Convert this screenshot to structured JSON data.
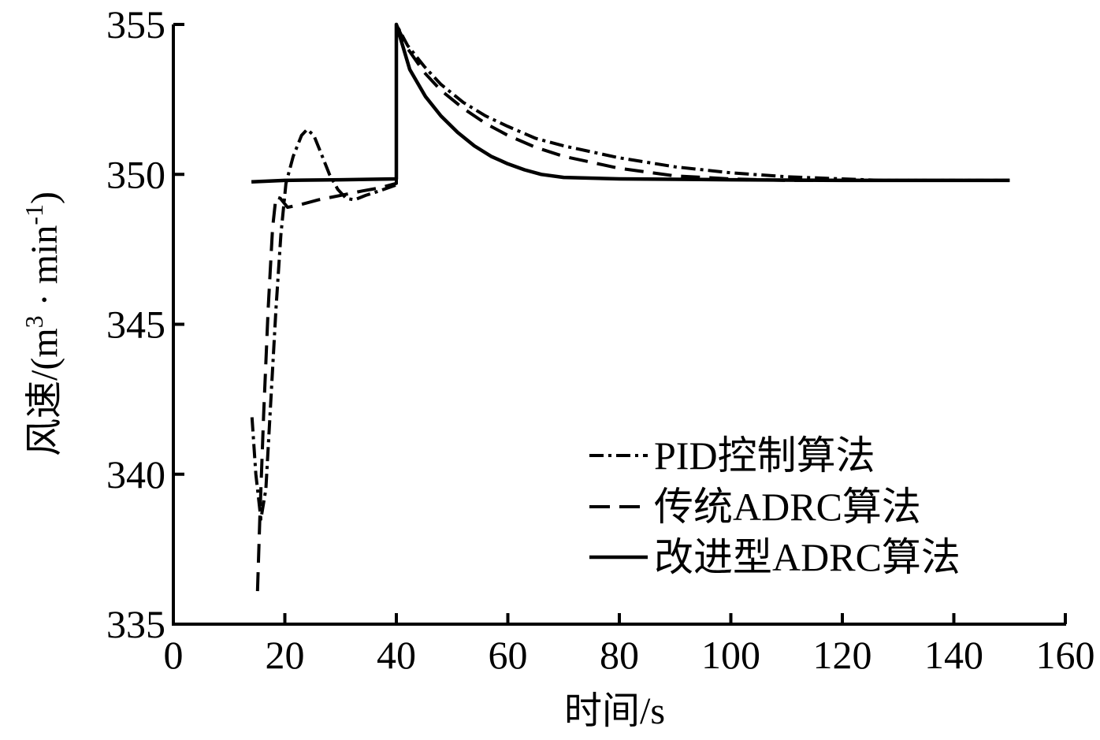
{
  "chart_data": {
    "type": "line",
    "title": "",
    "xlabel": "时间/s",
    "ylabel": "风速/(m³·min⁻¹)",
    "ylabel_parts": {
      "main": "风速/(m",
      "sup1": "3",
      "mid": " · min",
      "sup2": "-1",
      "end": ")"
    },
    "xlim": [
      0,
      160
    ],
    "ylim": [
      335,
      355
    ],
    "xticks": [
      0,
      20,
      40,
      60,
      80,
      100,
      120,
      140,
      160
    ],
    "yticks": [
      335,
      340,
      345,
      350,
      355
    ],
    "grid": false,
    "legend_position": "lower right",
    "series": [
      {
        "name": "PID控制算法",
        "style": "dashdot",
        "points": [
          [
            14.1,
            341.9
          ],
          [
            14.8,
            340.0
          ],
          [
            15.7,
            338.5
          ],
          [
            16.6,
            339.5
          ],
          [
            17.5,
            342.5
          ],
          [
            18.4,
            345.5
          ],
          [
            19.3,
            348.0
          ],
          [
            20.2,
            349.7
          ],
          [
            21.5,
            350.6
          ],
          [
            23.0,
            351.3
          ],
          [
            24.0,
            351.5
          ],
          [
            25.2,
            351.3
          ],
          [
            26.5,
            350.7
          ],
          [
            28.0,
            350.0
          ],
          [
            29.5,
            349.5
          ],
          [
            31.0,
            349.2
          ],
          [
            32.5,
            349.15
          ],
          [
            34.5,
            349.3
          ],
          [
            37.0,
            349.45
          ],
          [
            40.0,
            349.65
          ],
          [
            40.0,
            355.0
          ],
          [
            42,
            354.3
          ],
          [
            45,
            353.6
          ],
          [
            48,
            353.0
          ],
          [
            52,
            352.4
          ],
          [
            56,
            351.95
          ],
          [
            60,
            351.6
          ],
          [
            65,
            351.2
          ],
          [
            70,
            350.95
          ],
          [
            80,
            350.55
          ],
          [
            90,
            350.25
          ],
          [
            100,
            350.05
          ],
          [
            110,
            349.92
          ],
          [
            120,
            349.85
          ],
          [
            127,
            349.8
          ],
          [
            135,
            349.8
          ],
          [
            150,
            349.8
          ]
        ]
      },
      {
        "name": "传统ADRC算法",
        "style": "dashed",
        "points": [
          [
            15.1,
            336.1
          ],
          [
            15.5,
            338.5
          ],
          [
            16.2,
            342.0
          ],
          [
            17.0,
            345.5
          ],
          [
            17.8,
            348.2
          ],
          [
            18.4,
            349.25
          ],
          [
            19.2,
            349.2
          ],
          [
            20.5,
            348.9
          ],
          [
            23.0,
            349.0
          ],
          [
            26.0,
            349.15
          ],
          [
            30.0,
            349.3
          ],
          [
            34.0,
            349.45
          ],
          [
            37.0,
            349.55
          ],
          [
            40.0,
            349.7
          ],
          [
            40.0,
            355.0
          ],
          [
            42,
            354.2
          ],
          [
            45,
            353.4
          ],
          [
            48,
            352.8
          ],
          [
            52,
            352.2
          ],
          [
            56,
            351.7
          ],
          [
            60,
            351.3
          ],
          [
            65,
            350.9
          ],
          [
            70,
            350.6
          ],
          [
            80,
            350.2
          ],
          [
            90,
            349.95
          ],
          [
            100,
            349.85
          ],
          [
            110,
            349.8
          ],
          [
            120,
            349.8
          ],
          [
            150,
            349.8
          ]
        ]
      },
      {
        "name": "改进型ADRC算法",
        "style": "solid",
        "points": [
          [
            14.0,
            349.75
          ],
          [
            20,
            349.8
          ],
          [
            30,
            349.82
          ],
          [
            40.0,
            349.85
          ],
          [
            40.0,
            355.0
          ],
          [
            42.4,
            353.5
          ],
          [
            45.2,
            352.6
          ],
          [
            48,
            351.95
          ],
          [
            51,
            351.4
          ],
          [
            54,
            350.95
          ],
          [
            57,
            350.6
          ],
          [
            60,
            350.35
          ],
          [
            63,
            350.15
          ],
          [
            66,
            350.0
          ],
          [
            70,
            349.9
          ],
          [
            80,
            349.85
          ],
          [
            100,
            349.82
          ],
          [
            120,
            349.8
          ],
          [
            150,
            349.8
          ]
        ]
      }
    ]
  },
  "axes": {
    "xlabel": "时间/s",
    "ylabel_main": "风速/(m",
    "ylabel_sup1": "3",
    "ylabel_mid": " · min",
    "ylabel_sup2": "-1",
    "ylabel_end": ")"
  },
  "legend": {
    "items": [
      {
        "label": "PID控制算法",
        "style": "dashdot"
      },
      {
        "label": "传统ADRC算法",
        "style": "dashed"
      },
      {
        "label": "改进型ADRC算法",
        "style": "solid"
      }
    ]
  },
  "colors": {
    "line": "#000000",
    "background": "#ffffff"
  }
}
